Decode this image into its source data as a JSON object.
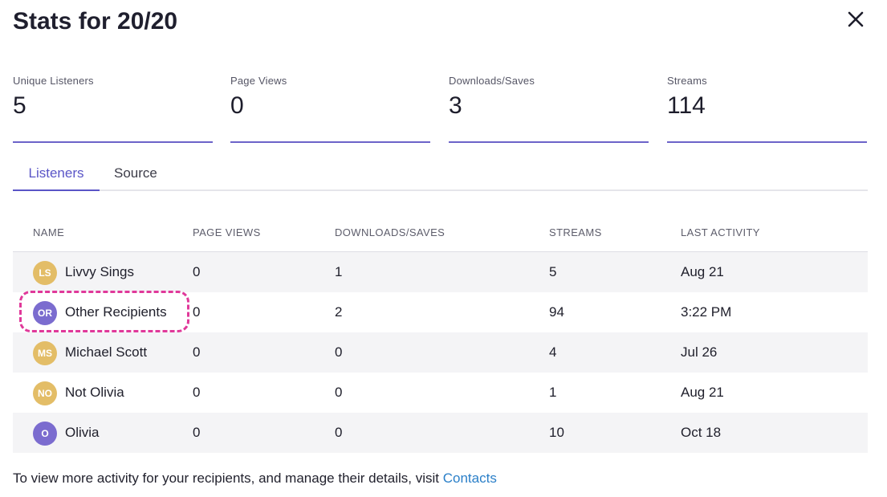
{
  "modal": {
    "title": "Stats for 20/20"
  },
  "stats": [
    {
      "label": "Unique Listeners",
      "value": "5"
    },
    {
      "label": "Page Views",
      "value": "0"
    },
    {
      "label": "Downloads/Saves",
      "value": "3"
    },
    {
      "label": "Streams",
      "value": "114"
    }
  ],
  "tabs": [
    {
      "label": "Listeners",
      "active": true
    },
    {
      "label": "Source",
      "active": false
    }
  ],
  "table": {
    "headers": [
      "NAME",
      "PAGE VIEWS",
      "DOWNLOADS/SAVES",
      "STREAMS",
      "LAST ACTIVITY"
    ],
    "rows": [
      {
        "initials": "LS",
        "name": "Livvy Sings",
        "page_views": "0",
        "downloads": "1",
        "streams": "5",
        "last_activity": "Aug 21",
        "avatar_color": "#e3bd67"
      },
      {
        "initials": "OR",
        "name": "Other Recipients",
        "page_views": "0",
        "downloads": "2",
        "streams": "94",
        "last_activity": "3:22 PM",
        "avatar_color": "#7b6ccf"
      },
      {
        "initials": "MS",
        "name": "Michael Scott",
        "page_views": "0",
        "downloads": "0",
        "streams": "4",
        "last_activity": "Jul 26",
        "avatar_color": "#e3bd67"
      },
      {
        "initials": "NO",
        "name": "Not Olivia",
        "page_views": "0",
        "downloads": "0",
        "streams": "1",
        "last_activity": "Aug 21",
        "avatar_color": "#e3bd67"
      },
      {
        "initials": "O",
        "name": "Olivia",
        "page_views": "0",
        "downloads": "0",
        "streams": "10",
        "last_activity": "Oct 18",
        "avatar_color": "#7b6ccf"
      }
    ]
  },
  "footer": {
    "text": "To view more activity for your recipients, and manage their details, visit",
    "link": "Contacts"
  },
  "colors": {
    "accent": "#5a55c7",
    "highlight": "#e0399a",
    "link": "#2a7fc8"
  },
  "icons": {
    "close": "close-icon"
  }
}
